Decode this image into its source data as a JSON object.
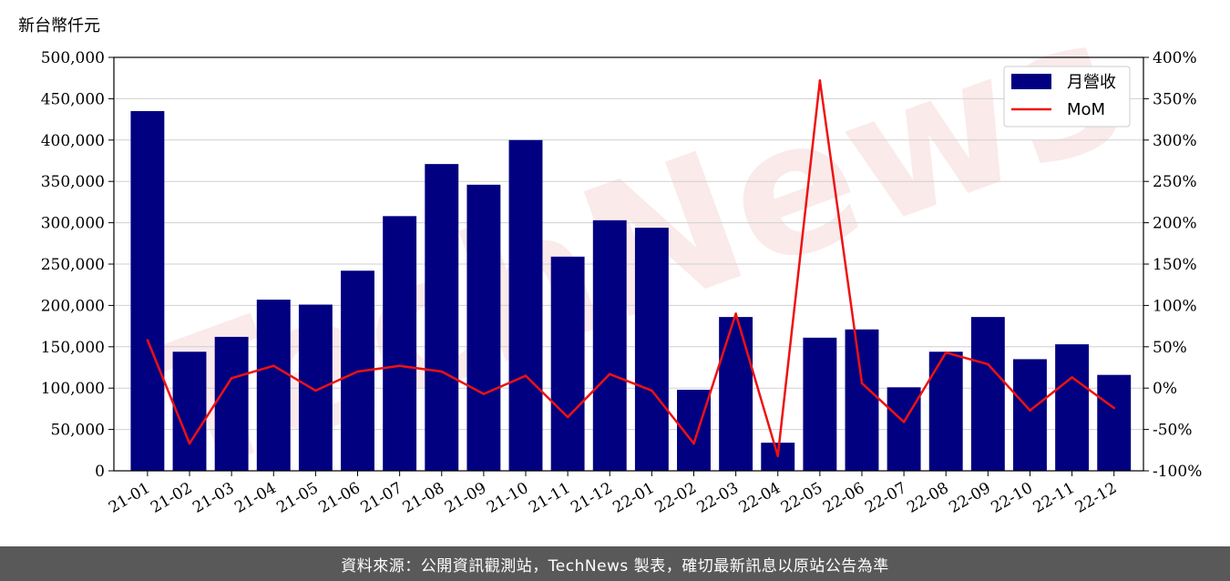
{
  "chart_data": {
    "type": "bar+line",
    "y_unit_label": "新台幣仟元",
    "categories": [
      "21-01",
      "21-02",
      "21-03",
      "21-04",
      "21-05",
      "21-06",
      "21-07",
      "21-08",
      "21-09",
      "21-10",
      "21-11",
      "21-12",
      "22-01",
      "22-02",
      "22-03",
      "22-04",
      "22-05",
      "22-06",
      "22-07",
      "22-08",
      "22-09",
      "22-10",
      "22-11",
      "22-12"
    ],
    "series": [
      {
        "name": "月營收",
        "type": "bar",
        "axis": "left",
        "color": "#000080",
        "values": [
          435000,
          144000,
          162000,
          207000,
          201000,
          242000,
          308000,
          371000,
          346000,
          400000,
          259000,
          303000,
          294000,
          98000,
          186000,
          34000,
          161000,
          171000,
          101000,
          144000,
          186000,
          135000,
          153000,
          116000
        ]
      },
      {
        "name": "MoM",
        "type": "line",
        "axis": "right",
        "color": "#ee1111",
        "values": [
          58,
          -67,
          12,
          27,
          -3,
          20,
          27,
          20,
          -7,
          15,
          -35,
          17,
          -3,
          -67,
          90,
          -82,
          372,
          6,
          -41,
          43,
          29,
          -27,
          13,
          -24
        ]
      }
    ],
    "yleft_lim": [
      0,
      500000
    ],
    "yleft_ticks": [
      "0",
      "50,000",
      "100,000",
      "150,000",
      "200,000",
      "250,000",
      "300,000",
      "350,000",
      "400,000",
      "450,000",
      "500,000"
    ],
    "yright_lim": [
      -100,
      400
    ],
    "yright_ticks": [
      "-100%",
      "-50%",
      "0%",
      "50%",
      "100%",
      "150%",
      "200%",
      "250%",
      "300%",
      "350%",
      "400%"
    ],
    "grid": "horizontal",
    "legend_position": "top-right"
  },
  "watermark": "TechNews",
  "footer": {
    "source_text": "資料來源：公開資訊觀測站，TechNews 製表，確切最新訊息以原站公告為準"
  }
}
